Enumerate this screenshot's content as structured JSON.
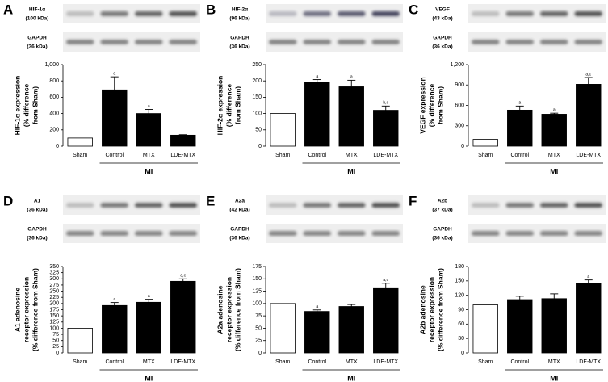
{
  "chart_data": [
    {
      "type": "bar",
      "panel": "A",
      "blot_labels": [
        [
          "HIF-1α",
          "(100 kDa)"
        ],
        [
          "GAPDH",
          "(36 kDa)"
        ]
      ],
      "ylabel": [
        "HIF-1α expression",
        "(% difference",
        "from Sham)"
      ],
      "categories": [
        "Sham",
        "Control",
        "MTX",
        "LDE-MTX"
      ],
      "values": [
        100,
        690,
        400,
        135
      ],
      "errors": [
        null,
        160,
        50,
        6
      ],
      "annotations": [
        null,
        "a",
        "a",
        null
      ],
      "colors": [
        "#ffffff",
        "#000000",
        "#000000",
        "#000000"
      ],
      "group_label": "MI",
      "ylim": [
        0,
        1000
      ],
      "yticks": [
        0,
        200,
        400,
        600,
        800,
        {
          "value": 1000,
          "label": "1,000"
        }
      ]
    },
    {
      "type": "bar",
      "panel": "B",
      "blot_labels": [
        [
          "HIF-2α",
          "(96 kDa)"
        ],
        [
          "GAPDH",
          "(36 kDa)"
        ]
      ],
      "ylabel": [
        "HIF-2α expression",
        "(% difference",
        "from Sham)"
      ],
      "categories": [
        "Sham",
        "Control",
        "MTX",
        "LDE-MTX"
      ],
      "values": [
        100,
        197,
        182,
        110
      ],
      "errors": [
        null,
        7,
        20,
        13
      ],
      "annotations": [
        null,
        "a",
        "a",
        "b,c"
      ],
      "colors": [
        "#ffffff",
        "#000000",
        "#000000",
        "#000000"
      ],
      "group_label": "MI",
      "ylim": [
        0,
        250
      ],
      "yticks": [
        0,
        50,
        100,
        150,
        200,
        250
      ]
    },
    {
      "type": "bar",
      "panel": "C",
      "blot_labels": [
        [
          "VEGF",
          "(43 kDa)"
        ],
        [
          "GAPDH",
          "(36 kDa)"
        ]
      ],
      "ylabel": [
        "VEGF expression",
        "(% difference",
        "from Sham)"
      ],
      "categories": [
        "Sham",
        "Control",
        "MTX",
        "LDE-MTX"
      ],
      "values": [
        100,
        530,
        470,
        910
      ],
      "errors": [
        null,
        60,
        15,
        100
      ],
      "annotations": [
        null,
        "a",
        "a",
        "a,c"
      ],
      "colors": [
        "#ffffff",
        "#000000",
        "#000000",
        "#000000"
      ],
      "group_label": "MI",
      "ylim": [
        0,
        1200
      ],
      "yticks": [
        0,
        300,
        600,
        900,
        {
          "value": 1200,
          "label": "1,200"
        }
      ]
    },
    {
      "type": "bar",
      "panel": "D",
      "blot_labels": [
        [
          "A1",
          "(36 kDa)"
        ],
        [
          "GAPDH",
          "(36 kDa)"
        ]
      ],
      "ylabel": [
        "A1 adenosine",
        "receptor expression",
        "(% difference from Sham)"
      ],
      "categories": [
        "Sham",
        "Control",
        "MTX",
        "LDE-MTX"
      ],
      "values": [
        100,
        192,
        205,
        290
      ],
      "errors": [
        null,
        12,
        12,
        10
      ],
      "annotations": [
        null,
        "a",
        "a",
        "a,c"
      ],
      "colors": [
        "#ffffff",
        "#000000",
        "#000000",
        "#000000"
      ],
      "group_label": "MI",
      "ylim": [
        0,
        350
      ],
      "yticks": [
        0,
        25,
        50,
        75,
        100,
        125,
        150,
        175,
        200,
        225,
        250,
        275,
        300,
        325,
        350
      ]
    },
    {
      "type": "bar",
      "panel": "E",
      "blot_labels": [
        [
          "A2a",
          "(42 kDa)"
        ],
        [
          "GAPDH",
          "(36 kDa)"
        ]
      ],
      "ylabel": [
        "A2a adenosine",
        "receptor expression",
        "(% difference from Sham)"
      ],
      "categories": [
        "Sham",
        "Control",
        "MTX",
        "LDE-MTX"
      ],
      "values": [
        100,
        84,
        94,
        132
      ],
      "errors": [
        null,
        3,
        4,
        9
      ],
      "annotations": [
        null,
        "a",
        null,
        "a,c"
      ],
      "colors": [
        "#ffffff",
        "#000000",
        "#000000",
        "#000000"
      ],
      "group_label": "MI",
      "ylim": [
        0,
        175
      ],
      "yticks": [
        0,
        25,
        50,
        75,
        100,
        125,
        150,
        175
      ]
    },
    {
      "type": "bar",
      "panel": "F",
      "blot_labels": [
        [
          "A2b",
          "(37 kDa)"
        ],
        [
          "GAPDH",
          "(36 kDa)"
        ]
      ],
      "ylabel": [
        "A2b adenosine",
        "receptor expression",
        "(% difference from Sham)"
      ],
      "categories": [
        "Sham",
        "Control",
        "MTX",
        "LDE-MTX"
      ],
      "values": [
        100,
        111,
        113,
        145
      ],
      "errors": [
        null,
        7,
        10,
        7
      ],
      "annotations": [
        null,
        null,
        null,
        "a"
      ],
      "colors": [
        "#ffffff",
        "#000000",
        "#000000",
        "#000000"
      ],
      "group_label": "MI",
      "ylim": [
        0,
        180
      ],
      "yticks": [
        0,
        30,
        60,
        90,
        120,
        150,
        180
      ]
    }
  ]
}
